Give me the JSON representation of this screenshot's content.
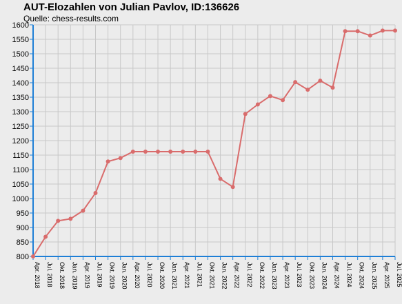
{
  "header": {
    "title": "AUT-Elozahlen von Julian Pavlov, ID:136626",
    "subtitle": "Quelle: chess-results.com"
  },
  "colors": {
    "background": "#ececec",
    "grid": "#c8c8c8",
    "axis": "#1e7fd6",
    "line": "#d96c6c",
    "marker": "#d96c6c"
  },
  "chart_data": {
    "type": "line",
    "title": "AUT-Elozahlen von Julian Pavlov, ID:136626",
    "xlabel": "",
    "ylabel": "",
    "ylim": [
      800,
      1600
    ],
    "yticks": [
      800,
      850,
      900,
      950,
      1000,
      1050,
      1100,
      1150,
      1200,
      1250,
      1300,
      1350,
      1400,
      1450,
      1500,
      1550,
      1600
    ],
    "grid": true,
    "categories": [
      "Apr. 2018",
      "Jul. 2018",
      "Okt. 2018",
      "Jan. 2019",
      "Apr. 2019",
      "Jul. 2019",
      "Okt. 2019",
      "Jan. 2020",
      "Apr. 2020",
      "Jul. 2020",
      "Okt. 2020",
      "Jan. 2021",
      "Apr. 2021",
      "Jul. 2021",
      "Okt. 2021",
      "Jan. 2022",
      "Apr. 2022",
      "Jul. 2022",
      "Okt. 2022",
      "Jan. 2023",
      "Apr. 2023",
      "Jul. 2023",
      "Okt. 2023",
      "Jan. 2024",
      "Apr. 2024",
      "Jul. 2024",
      "Okt. 2024",
      "Jan. 2025",
      "Apr. 2025",
      "Jul. 2025"
    ],
    "series": [
      {
        "values": [
          800,
          868,
          923,
          930,
          958,
          1019,
          1128,
          1140,
          1162,
          1162,
          1162,
          1162,
          1162,
          1162,
          1162,
          1068,
          1040,
          1292,
          1325,
          1354,
          1340,
          1402,
          1376,
          1407,
          1383,
          1578,
          1578,
          1563,
          1580,
          1580
        ]
      }
    ]
  }
}
